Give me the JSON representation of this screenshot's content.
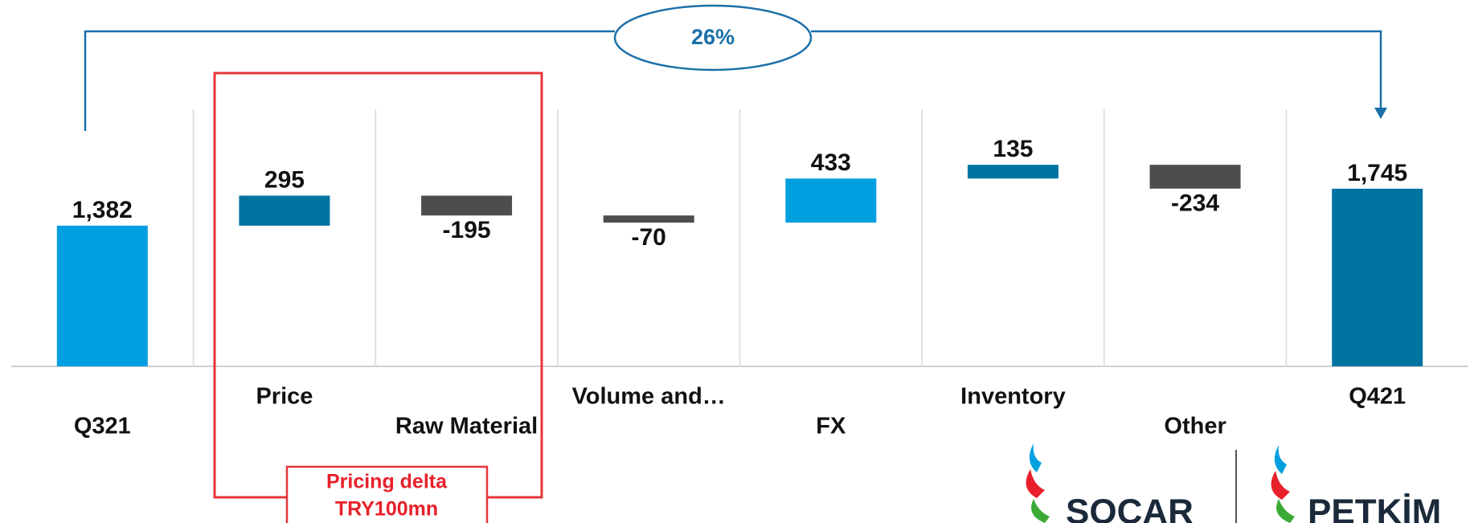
{
  "chart_data": {
    "type": "waterfall",
    "categories": [
      "Q321",
      "Price",
      "Raw Material",
      "Volume and…",
      "FX",
      "Inventory",
      "Other",
      "Q421"
    ],
    "values": [
      1382,
      295,
      -195,
      -70,
      433,
      135,
      -234,
      1745
    ],
    "value_labels": [
      "1,382",
      "295",
      "-195",
      "-70",
      "433",
      "135",
      "-234",
      "1,745"
    ],
    "totals": [
      true,
      false,
      false,
      false,
      false,
      false,
      false,
      true
    ],
    "colors": [
      "#009fdf",
      "#0074a0",
      "#4d4d4d",
      "#4d4d4d",
      "#009fdf",
      "#0074a0",
      "#4d4d4d",
      "#0074a0"
    ],
    "annotation": "26%",
    "callout": {
      "title": "Pricing delta",
      "text": "TRY100mn"
    }
  },
  "logos": [
    "SOCAR",
    "PETKİM"
  ]
}
